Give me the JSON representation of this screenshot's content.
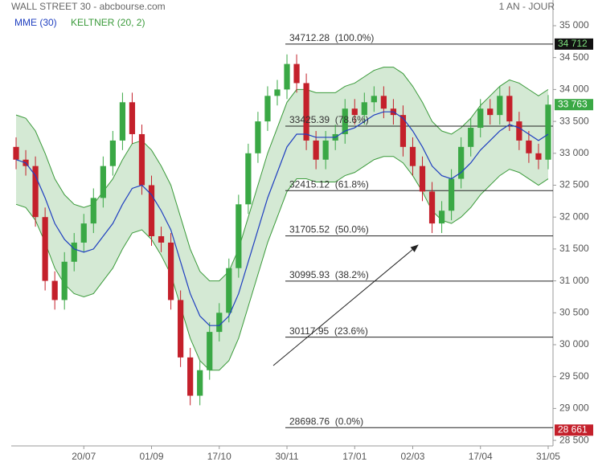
{
  "chart_data": {
    "type": "candlestick",
    "title": "WALL STREET 30 - abcbourse.com",
    "period": "1 AN - JOUR",
    "categories": [
      null,
      null,
      null,
      null,
      null,
      null,
      null,
      "20/07",
      null,
      null,
      null,
      null,
      null,
      null,
      "01/09",
      null,
      null,
      null,
      null,
      null,
      null,
      "17/10",
      null,
      null,
      null,
      null,
      null,
      null,
      "30/11",
      null,
      null,
      null,
      null,
      null,
      null,
      "17/01",
      null,
      null,
      null,
      null,
      null,
      "02/03",
      null,
      null,
      null,
      null,
      null,
      null,
      "17/04",
      null,
      null,
      null,
      null,
      null,
      null,
      "31/05"
    ],
    "open": [
      33100,
      32900,
      32800,
      32000,
      31000,
      30700,
      31300,
      31600,
      31900,
      32300,
      32800,
      33200,
      33800,
      33300,
      32500,
      31700,
      31600,
      30700,
      29800,
      29200,
      29600,
      30200,
      30500,
      31200,
      32200,
      33000,
      33500,
      33900,
      34000,
      34400,
      34100,
      33200,
      32900,
      33200,
      33300,
      33700,
      33600,
      33800,
      33900,
      33700,
      33600,
      33100,
      32800,
      32400,
      31900,
      32100,
      32600,
      33100,
      33400,
      33700,
      33600,
      33900,
      33500,
      33200,
      33000,
      32900
    ],
    "close": [
      32900,
      32800,
      32000,
      31000,
      30700,
      31300,
      31600,
      31900,
      32300,
      32800,
      33200,
      33800,
      33300,
      32500,
      31700,
      31600,
      30700,
      29800,
      29200,
      29600,
      30200,
      30500,
      31200,
      32200,
      33000,
      33500,
      33900,
      34000,
      34400,
      34100,
      33200,
      32900,
      33200,
      33300,
      33700,
      33600,
      33800,
      33900,
      33700,
      33600,
      33100,
      32800,
      32400,
      31900,
      32100,
      32600,
      33100,
      33400,
      33700,
      33600,
      33900,
      33500,
      33200,
      33000,
      32900,
      33763
    ],
    "high": [
      33250,
      33050,
      32950,
      32150,
      31150,
      31450,
      31750,
      32050,
      32450,
      32950,
      33350,
      33950,
      33950,
      33450,
      32650,
      31850,
      31750,
      30850,
      29950,
      29750,
      30350,
      30650,
      31350,
      32350,
      33150,
      33650,
      34050,
      34150,
      34550,
      34550,
      34250,
      33350,
      33350,
      33450,
      33850,
      33850,
      33950,
      34050,
      34050,
      33850,
      33750,
      33250,
      32950,
      32550,
      32250,
      32750,
      33250,
      33550,
      33850,
      33850,
      34050,
      34050,
      33650,
      33350,
      33150,
      33913
    ],
    "low": [
      32750,
      32650,
      31850,
      30850,
      30550,
      30550,
      31150,
      31450,
      31750,
      32150,
      32650,
      33050,
      33150,
      32350,
      31550,
      31450,
      30550,
      29650,
      29050,
      29050,
      29450,
      30050,
      30350,
      31050,
      32050,
      32850,
      33350,
      33750,
      33850,
      33950,
      33050,
      32750,
      32750,
      33050,
      33150,
      33450,
      33450,
      33650,
      33550,
      33450,
      32950,
      32650,
      32250,
      31750,
      31750,
      31950,
      32450,
      32950,
      33250,
      33450,
      33450,
      33350,
      33050,
      32850,
      32750,
      32750
    ],
    "up_color": "#3aa845",
    "down_color": "#c4202b",
    "series": [
      {
        "name": "MME (30)",
        "color": "#1f3fc0",
        "values": [
          32900,
          32850,
          32650,
          32300,
          31900,
          31650,
          31500,
          31450,
          31500,
          31700,
          31900,
          32200,
          32450,
          32500,
          32350,
          32100,
          31800,
          31300,
          30800,
          30450,
          30300,
          30300,
          30450,
          30800,
          31300,
          31800,
          32300,
          32700,
          33100,
          33300,
          33300,
          33250,
          33250,
          33250,
          33350,
          33400,
          33500,
          33600,
          33650,
          33650,
          33550,
          33350,
          33100,
          32800,
          32650,
          32600,
          32700,
          32850,
          33050,
          33200,
          33350,
          33450,
          33400,
          33300,
          33200,
          33300
        ]
      },
      {
        "name": "KELTNER (20, 2)",
        "color": "#3a9a3a",
        "upper": [
          33600,
          33550,
          33350,
          33000,
          32600,
          32350,
          32200,
          32150,
          32200,
          32400,
          32600,
          32900,
          33150,
          33200,
          33050,
          32800,
          32500,
          32000,
          31500,
          31150,
          31000,
          31000,
          31150,
          31500,
          32000,
          32500,
          33000,
          33400,
          33800,
          34000,
          34000,
          33950,
          33950,
          33950,
          34050,
          34100,
          34200,
          34300,
          34350,
          34350,
          34250,
          34050,
          33800,
          33500,
          33350,
          33300,
          33400,
          33550,
          33750,
          33900,
          34050,
          34150,
          34100,
          34000,
          33900,
          34000
        ],
        "lower": [
          32200,
          32150,
          31950,
          31600,
          31200,
          30950,
          30800,
          30750,
          30800,
          31000,
          31200,
          31500,
          31750,
          31800,
          31650,
          31400,
          31100,
          30600,
          30100,
          29750,
          29600,
          29600,
          29750,
          30100,
          30600,
          31100,
          31600,
          32000,
          32400,
          32600,
          32600,
          32550,
          32550,
          32550,
          32650,
          32700,
          32800,
          32900,
          32950,
          32950,
          32850,
          32650,
          32400,
          32100,
          31950,
          31900,
          32000,
          32150,
          32350,
          32500,
          32650,
          32750,
          32700,
          32600,
          32500,
          32600
        ]
      }
    ],
    "fib_levels": [
      {
        "value": 34712.28,
        "label": "34712.28  (100.0%)"
      },
      {
        "value": 33425.39,
        "label": "33425.39  (78.6%)"
      },
      {
        "value": 32415.12,
        "label": "32415.12  (61.8%)"
      },
      {
        "value": 31705.52,
        "label": "31705.52  (50.0%)"
      },
      {
        "value": 30995.93,
        "label": "30995.93  (38.2%)"
      },
      {
        "value": 30117.95,
        "label": "30117.95  (23.6%)"
      },
      {
        "value": 28698.76,
        "label": "28698.76  (0.0%)"
      }
    ],
    "price_tags": [
      {
        "value": 34712,
        "label": "34 712",
        "color": "#111111",
        "text_color": "#7de07d"
      },
      {
        "value": 33763,
        "label": "33 763",
        "color": "#3aa845",
        "text_color": "#ffffff"
      },
      {
        "value": 28661,
        "label": "28 661",
        "color": "#c4202b",
        "text_color": "#ffffff"
      }
    ],
    "ylim": [
      28413,
      35151
    ],
    "yticks": [
      {
        "value": 35000,
        "label": "35 000"
      },
      {
        "value": 34500,
        "label": "34 500"
      },
      {
        "value": 34000,
        "label": "34 000"
      },
      {
        "value": 33500,
        "label": "33 500"
      },
      {
        "value": 33000,
        "label": "33 000"
      },
      {
        "value": 32500,
        "label": "32 500"
      },
      {
        "value": 32000,
        "label": "32 000"
      },
      {
        "value": 31500,
        "label": "31 500"
      },
      {
        "value": 31000,
        "label": "31 000"
      },
      {
        "value": 30500,
        "label": "30 500"
      },
      {
        "value": 30000,
        "label": "30 000"
      },
      {
        "value": 29500,
        "label": "29 500"
      },
      {
        "value": 29000,
        "label": "29 000"
      },
      {
        "value": 28500,
        "label": "28 500"
      }
    ]
  }
}
